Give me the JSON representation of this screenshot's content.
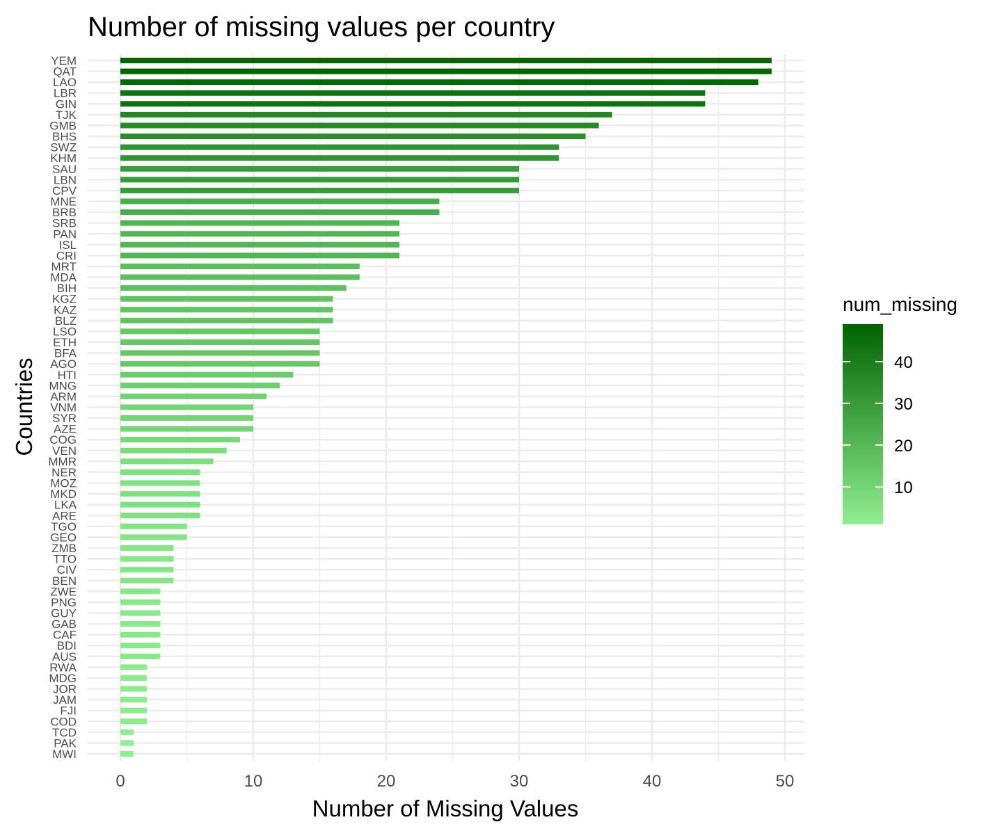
{
  "chart_data": {
    "type": "bar",
    "orientation": "horizontal",
    "title": "Number of missing values per country",
    "xlabel": "Number of Missing Values",
    "ylabel": "Countries",
    "xlim": [
      0,
      50
    ],
    "x_ticks": [
      0,
      10,
      20,
      30,
      40,
      50
    ],
    "grid": true,
    "legend_position": "right",
    "categories": [
      "YEM",
      "QAT",
      "LAO",
      "LBR",
      "GIN",
      "TJK",
      "GMB",
      "BHS",
      "SWZ",
      "KHM",
      "SAU",
      "LBN",
      "CPV",
      "MNE",
      "BRB",
      "SRB",
      "PAN",
      "ISL",
      "CRI",
      "MRT",
      "MDA",
      "BIH",
      "KGZ",
      "KAZ",
      "BLZ",
      "LSO",
      "ETH",
      "BFA",
      "AGO",
      "HTI",
      "MNG",
      "ARM",
      "VNM",
      "SYR",
      "AZE",
      "COG",
      "VEN",
      "MMR",
      "NER",
      "MOZ",
      "MKD",
      "LKA",
      "ARE",
      "TGO",
      "GEO",
      "ZMB",
      "TTO",
      "CIV",
      "BEN",
      "ZWE",
      "PNG",
      "GUY",
      "GAB",
      "CAF",
      "BDI",
      "AUS",
      "RWA",
      "MDG",
      "JOR",
      "JAM",
      "FJI",
      "COD",
      "TCD",
      "PAK",
      "MWI"
    ],
    "values": [
      49,
      49,
      48,
      44,
      44,
      37,
      36,
      35,
      33,
      33,
      30,
      30,
      30,
      24,
      24,
      21,
      21,
      21,
      21,
      18,
      18,
      17,
      16,
      16,
      16,
      15,
      15,
      15,
      15,
      13,
      12,
      11,
      10,
      10,
      10,
      9,
      8,
      7,
      6,
      6,
      6,
      6,
      6,
      5,
      5,
      4,
      4,
      4,
      4,
      3,
      3,
      3,
      3,
      3,
      3,
      3,
      2,
      2,
      2,
      2,
      2,
      2,
      1,
      1,
      1
    ],
    "legend": {
      "title": "num_missing",
      "ticks": [
        10,
        20,
        30,
        40
      ],
      "range": [
        1,
        49
      ],
      "color_low": "#90ee90",
      "color_high": "#006400"
    }
  }
}
